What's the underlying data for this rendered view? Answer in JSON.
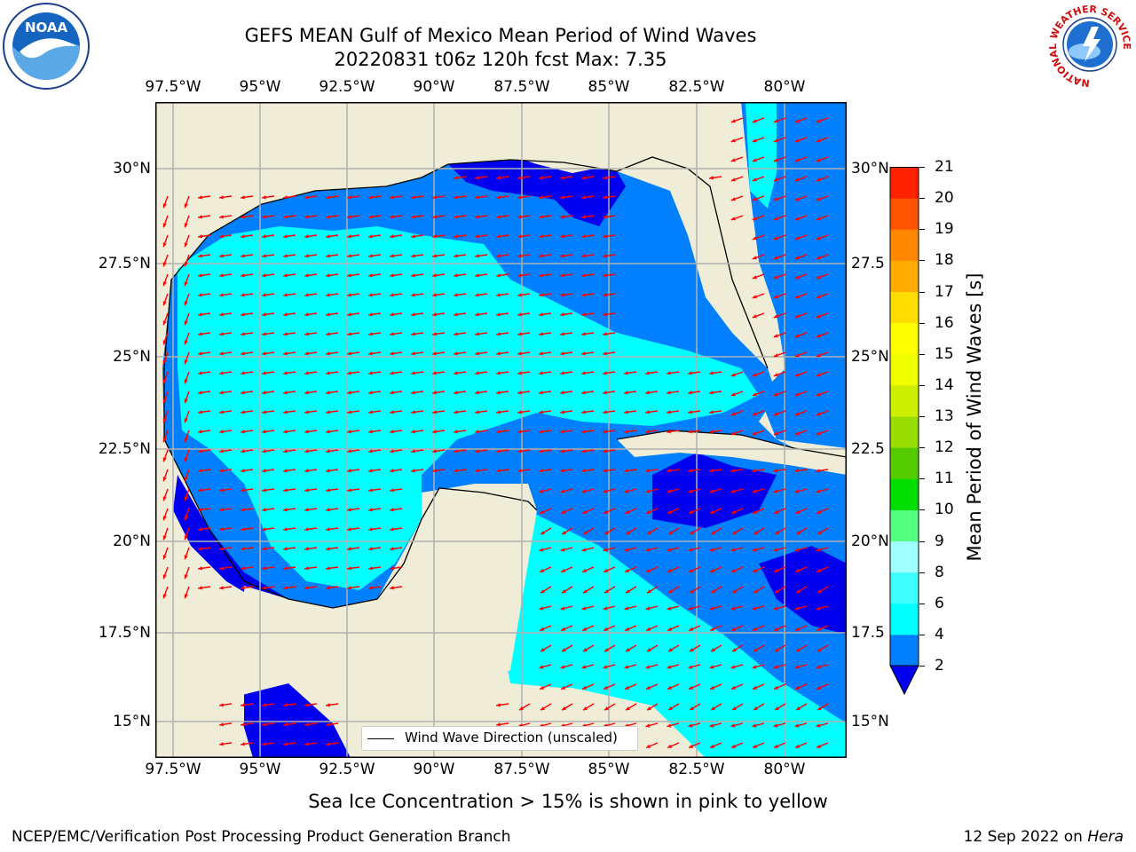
{
  "header": {
    "title_line1": "GEFS MEAN Gulf of Mexico Mean Period of Wind Waves",
    "title_line2": "20220831 t06z 120h fcst   Max: 7.35"
  },
  "logos": {
    "left": "NOAA",
    "right_ring": "NATIONAL WEATHER SERVICE"
  },
  "axes": {
    "lon_labels": [
      "97.5°W",
      "95°W",
      "92.5°W",
      "90°W",
      "87.5°W",
      "85°W",
      "82.5°W",
      "80°W"
    ],
    "lat_labels_left": [
      "30°N",
      "27.5°N",
      "25°N",
      "22.5°N",
      "20°N",
      "17.5°N",
      "15°N"
    ],
    "lat_labels_right": [
      "30°N",
      "27.5",
      "25°N",
      "22.5",
      "20°N",
      "17.5",
      "15°N"
    ]
  },
  "legend": {
    "line_label": "Wind Wave Direction (unscaled)"
  },
  "colorbar": {
    "label": "Mean Period of Wind Waves [s]",
    "ticks": [
      "2",
      "4",
      "6",
      "8",
      "9",
      "10",
      "11",
      "12",
      "13",
      "14",
      "15",
      "16",
      "17",
      "18",
      "19",
      "20",
      "21"
    ],
    "colors": [
      "#0000ee",
      "#0080ff",
      "#00ffff",
      "#40ffff",
      "#a0ffff",
      "#55ff80",
      "#00dd00",
      "#55cc00",
      "#99dd00",
      "#ccee00",
      "#eeff00",
      "#ffff00",
      "#ffdd00",
      "#ffaa00",
      "#ff8800",
      "#ff5500",
      "#ff2200",
      "#ff0000"
    ],
    "extend_color": "#0000ee"
  },
  "map_colors": {
    "land": "#efedd8",
    "level_2_4": "#0080ff",
    "level_4_6": "#00ffff",
    "below_2": "#0000ee",
    "arrow": "#ff0000",
    "grid": "#b0b0b0"
  },
  "footer": {
    "sea_ice_note": "Sea Ice Concentration > 15% is shown in pink to yellow",
    "credit": "NCEP/EMC/Verification Post Processing Product Generation Branch",
    "date": "12 Sep 2022 on ",
    "machine": "Hera"
  }
}
